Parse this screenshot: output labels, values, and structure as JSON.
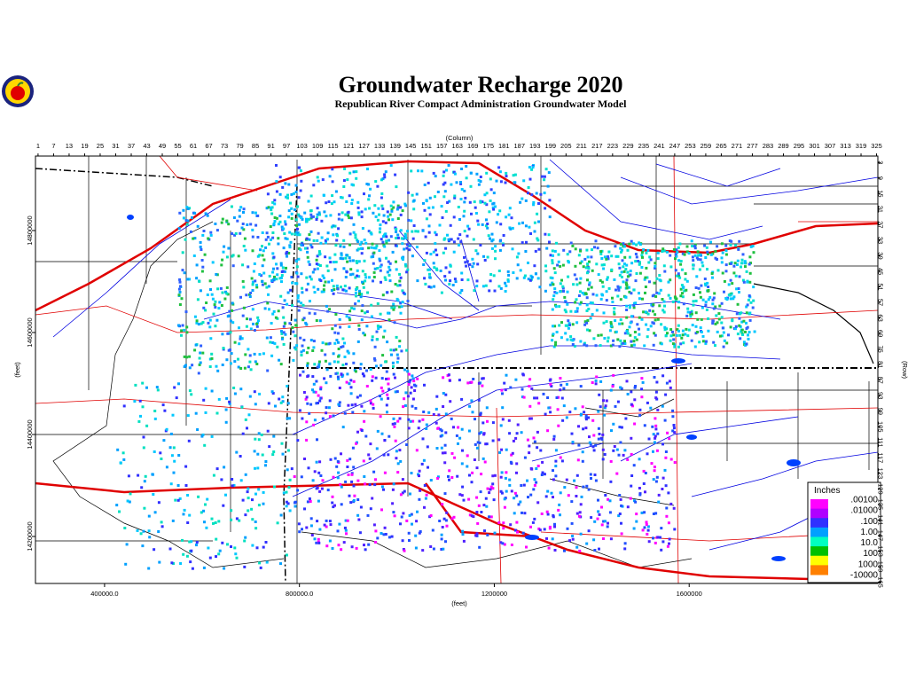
{
  "header": {
    "title": "Groundwater Recharge 2020",
    "subtitle": "Republican River Compact Administration Groundwater Model"
  },
  "axes": {
    "column": {
      "label": "(Column)",
      "lim": [
        0,
        325.5
      ],
      "ticks": [
        1,
        7,
        13,
        19,
        25,
        31,
        37,
        43,
        49,
        55,
        61,
        67,
        73,
        79,
        85,
        91,
        97,
        103,
        109,
        115,
        121,
        127,
        133,
        139,
        145,
        151,
        157,
        163,
        169,
        175,
        181,
        187,
        193,
        199,
        205,
        211,
        217,
        223,
        229,
        235,
        241,
        247,
        253,
        259,
        265,
        271,
        277,
        283,
        289,
        295,
        301,
        307,
        313,
        319,
        325
      ]
    },
    "row": {
      "label": "(Row)",
      "lim": [
        0.5,
        165.5
      ],
      "ticks": [
        3,
        9,
        15,
        21,
        27,
        33,
        39,
        45,
        51,
        57,
        63,
        69,
        75,
        81,
        87,
        93,
        99,
        105,
        111,
        117,
        123,
        129,
        135,
        141,
        147,
        153,
        159,
        165
      ]
    },
    "x_feet": {
      "label": "(feet)",
      "lim": [
        258182,
        1987273
      ],
      "ticks": [
        {
          "value": 400000,
          "label": "400000.0"
        },
        {
          "value": 800000,
          "label": "800000.0"
        },
        1200000,
        1600000
      ]
    },
    "y_feet": {
      "label": "(feet)",
      "lim": [
        14107826,
        14946087
      ],
      "ticks": [
        14800000,
        14600000,
        14400000,
        14200000
      ]
    }
  },
  "legend": {
    "title": "Inches",
    "entries": [
      ".00100",
      ".01000",
      ".100",
      "1.00",
      "10.0",
      "100",
      "1000",
      "-10000"
    ],
    "colors": [
      "#ff00ff",
      "#b000ff",
      "#3030ff",
      "#00a0ff",
      "#00ffc0",
      "#00c000",
      "#ffff00",
      "#ff8000"
    ]
  }
}
